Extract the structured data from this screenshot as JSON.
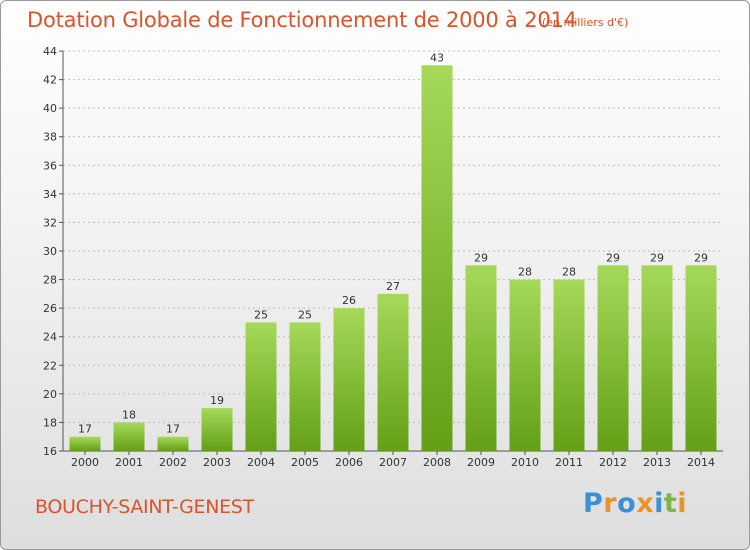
{
  "header": {
    "title": "Dotation Globale de Fonctionnement de 2000 à 2014",
    "subtitle": "(en milliers d'€)"
  },
  "footer": {
    "commune": "BOUCHY-SAINT-GENEST",
    "logo_text": "Proxiti",
    "logo_colors": [
      "#3a8fd6",
      "#e8932b",
      "#3a8fd6",
      "#e8932b",
      "#3a8fd6",
      "#7ab648",
      "#e8932b"
    ]
  },
  "colors": {
    "title": "#d9542a",
    "bar_light": "#a6d95a",
    "bar_dark": "#62a016",
    "grid": "#bbbbbb"
  },
  "chart_data": {
    "type": "bar",
    "title": "Dotation Globale de Fonctionnement de 2000 à 2014",
    "subtitle": "(en milliers d'€)",
    "categories": [
      "2000",
      "2001",
      "2002",
      "2003",
      "2004",
      "2005",
      "2006",
      "2007",
      "2008",
      "2009",
      "2010",
      "2011",
      "2012",
      "2013",
      "2014"
    ],
    "values": [
      17,
      18,
      17,
      19,
      25,
      25,
      26,
      27,
      43,
      29,
      28,
      28,
      29,
      29,
      29
    ],
    "ylim": [
      16,
      44
    ],
    "yticks": [
      16,
      18,
      20,
      22,
      24,
      26,
      28,
      30,
      32,
      34,
      36,
      38,
      40,
      42,
      44
    ],
    "grid": true,
    "xlabel": "",
    "ylabel": ""
  }
}
